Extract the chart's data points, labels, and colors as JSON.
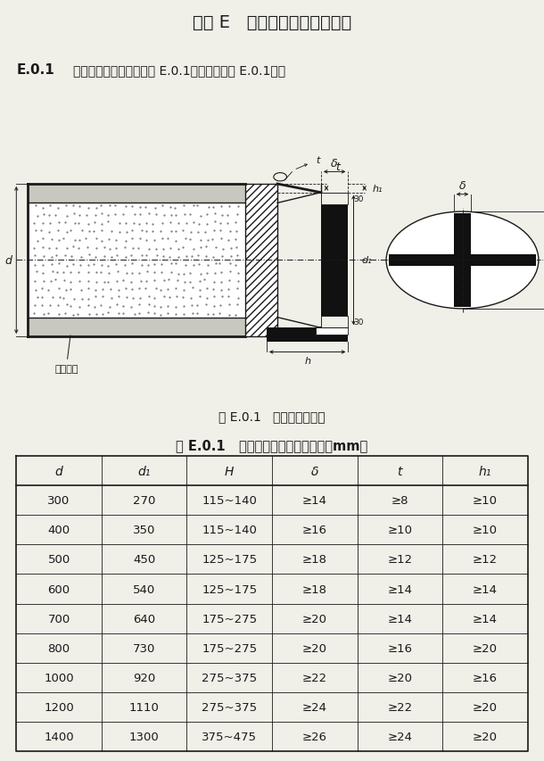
{
  "title": "附录 E   常用管桩的桩尖构造图",
  "section_label": "E.0.1",
  "section_text": "平底十字型桩尖构造（图 E.0.1）及尺寸（表 E.0.1）。",
  "fig_caption": "图 E.0.1   平底十字型桩尖",
  "table_title": "表 E.0.1   平底十字型桩尖构造尺寸（mm）",
  "pile_label": "管桩桩身",
  "table_headers": [
    "d",
    "d₁",
    "H",
    "δ",
    "t",
    "h₁"
  ],
  "table_data": [
    [
      "300",
      "270",
      "115~140",
      "≥14",
      "≥8",
      "≥10"
    ],
    [
      "400",
      "350",
      "115~140",
      "≥16",
      "≥10",
      "≥10"
    ],
    [
      "500",
      "450",
      "125~175",
      "≥18",
      "≥12",
      "≥12"
    ],
    [
      "600",
      "540",
      "125~175",
      "≥18",
      "≥14",
      "≥14"
    ],
    [
      "700",
      "640",
      "175~275",
      "≥20",
      "≥14",
      "≥14"
    ],
    [
      "800",
      "730",
      "175~275",
      "≥20",
      "≥16",
      "≥20"
    ],
    [
      "1000",
      "920",
      "275~375",
      "≥22",
      "≥20",
      "≥16"
    ],
    [
      "1200",
      "1110",
      "275~375",
      "≥24",
      "≥22",
      "≥20"
    ],
    [
      "1400",
      "1300",
      "375~475",
      "≥26",
      "≥24",
      "≥20"
    ]
  ],
  "bg_color": "#f0efe8",
  "line_color": "#1a1a1a",
  "text_color": "#1a1a1a"
}
